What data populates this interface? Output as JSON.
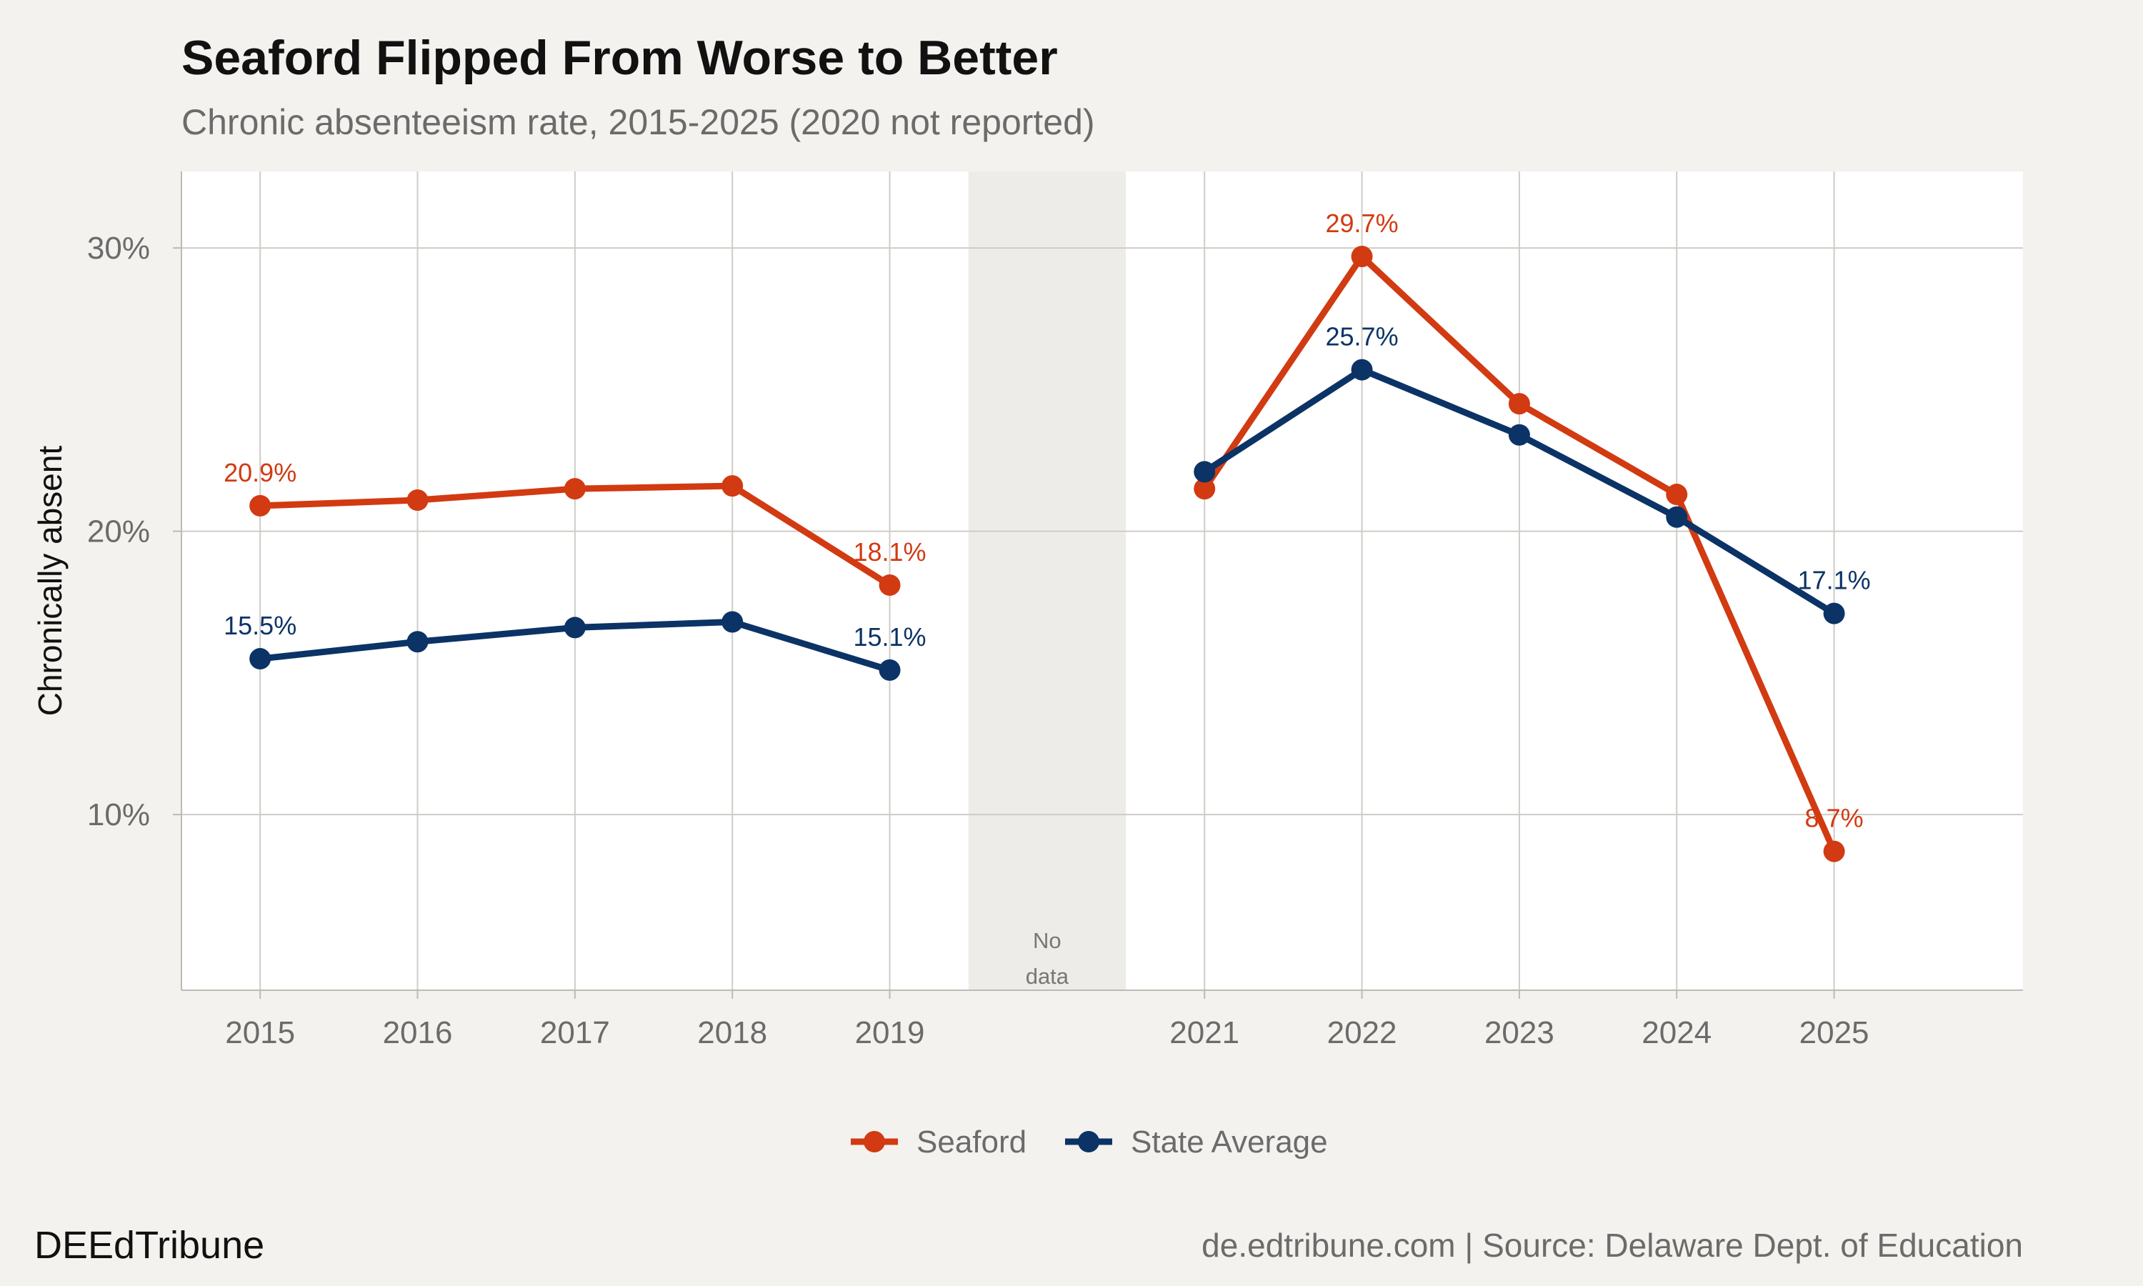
{
  "chart_data": {
    "type": "line",
    "title": "Seaford Flipped From Worse to Better",
    "subtitle": "Chronic absenteeism rate, 2015-2025 (2020 not reported)",
    "ylabel": "Chronically absent",
    "xlabel": "",
    "x": [
      2015,
      2016,
      2017,
      2018,
      2019,
      2021,
      2022,
      2023,
      2024,
      2025
    ],
    "x_ticks": [
      2015,
      2016,
      2017,
      2018,
      2019,
      2021,
      2022,
      2023,
      2024,
      2025
    ],
    "x_range": [
      2014.5,
      2026.2
    ],
    "ylim": [
      3.8,
      32.7
    ],
    "y_ticks": [
      10,
      20,
      30
    ],
    "y_tick_labels": [
      "10%",
      "20%",
      "30%"
    ],
    "grid": true,
    "legend_position": "bottom",
    "gap_annotation": {
      "x_range": [
        2019.5,
        2020.5
      ],
      "line1": "No",
      "line2": "data"
    },
    "series": [
      {
        "name": "Seaford",
        "color": "#d23a12",
        "values": [
          20.9,
          21.1,
          21.5,
          21.6,
          18.1,
          21.5,
          29.7,
          24.5,
          21.3,
          8.7
        ],
        "labels": [
          {
            "index": 0,
            "text": "20.9%"
          },
          {
            "index": 4,
            "text": "18.1%"
          },
          {
            "index": 6,
            "text": "29.7%"
          },
          {
            "index": 9,
            "text": "8.7%"
          }
        ]
      },
      {
        "name": "State Average",
        "color": "#0b3366",
        "values": [
          15.5,
          16.1,
          16.6,
          16.8,
          15.1,
          22.1,
          25.7,
          23.4,
          20.5,
          17.1
        ],
        "labels": [
          {
            "index": 0,
            "text": "15.5%"
          },
          {
            "index": 4,
            "text": "15.1%"
          },
          {
            "index": 6,
            "text": "25.7%"
          },
          {
            "index": 9,
            "text": "17.1%"
          }
        ]
      }
    ]
  },
  "footer": {
    "brand": "DEEdTribune",
    "source": "de.edtribune.com | Source: Delaware Dept. of Education"
  }
}
